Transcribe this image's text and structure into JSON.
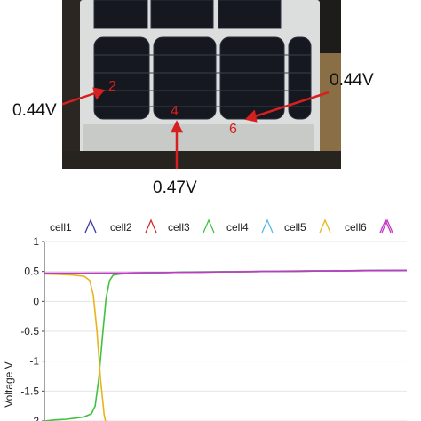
{
  "photo": {
    "callouts": [
      {
        "value": "0.44V",
        "cell": "2"
      },
      {
        "value": "0.47V",
        "cell": "4"
      },
      {
        "value": "0.44V",
        "cell": "6"
      }
    ],
    "arrow_color": "#d62020"
  },
  "chart_data": {
    "type": "line",
    "xlabel": "",
    "ylabel": "Voltage V",
    "ylim": [
      -2,
      1
    ],
    "yticks": [
      1,
      0.5,
      0,
      -0.5,
      -1,
      -1.5,
      -2
    ],
    "ytick_labels": [
      "1",
      "0.5",
      "0",
      "-0.5",
      "-1",
      "-1.5",
      "-2"
    ],
    "legend_position": "top",
    "legend": [
      "cell1",
      "cell2",
      "cell3",
      "cell4",
      "cell5",
      "cell6"
    ],
    "series": [
      {
        "name": "cell1",
        "color": "#3a3aa0",
        "values": [
          [
            0,
            0.47
          ],
          [
            10,
            0.47
          ],
          [
            30,
            0.48
          ],
          [
            60,
            0.5
          ],
          [
            100,
            0.52
          ]
        ]
      },
      {
        "name": "cell2",
        "color": "#d42a2a",
        "values": [
          [
            0,
            0.47
          ],
          [
            10,
            0.47
          ],
          [
            30,
            0.48
          ],
          [
            60,
            0.5
          ],
          [
            100,
            0.52
          ]
        ]
      },
      {
        "name": "cell3",
        "color": "#3fc23f",
        "values": [
          [
            0,
            -2.0
          ],
          [
            3,
            -1.98
          ],
          [
            6,
            -1.97
          ],
          [
            9,
            -1.95
          ],
          [
            11,
            -1.93
          ],
          [
            13,
            -1.88
          ],
          [
            14,
            -1.75
          ],
          [
            15,
            -1.3
          ],
          [
            16,
            -0.6
          ],
          [
            17,
            0.05
          ],
          [
            18,
            0.35
          ],
          [
            19,
            0.44
          ],
          [
            21,
            0.46
          ],
          [
            25,
            0.47
          ],
          [
            40,
            0.49
          ],
          [
            70,
            0.51
          ],
          [
            100,
            0.52
          ]
        ]
      },
      {
        "name": "cell4",
        "color": "#5ab6e8",
        "values": [
          [
            0,
            0.47
          ],
          [
            10,
            0.47
          ],
          [
            30,
            0.48
          ],
          [
            60,
            0.5
          ],
          [
            100,
            0.52
          ]
        ]
      },
      {
        "name": "cell5",
        "color": "#e8b41a",
        "values": [
          [
            0,
            0.46
          ],
          [
            4,
            0.45
          ],
          [
            8,
            0.44
          ],
          [
            11,
            0.42
          ],
          [
            12.5,
            0.35
          ],
          [
            13.5,
            0.1
          ],
          [
            14.5,
            -0.5
          ],
          [
            15.5,
            -1.3
          ],
          [
            16.5,
            -1.9
          ],
          [
            17.2,
            -2.1
          ]
        ]
      },
      {
        "name": "cell6",
        "color": "#c23ac2",
        "values": [
          [
            0,
            0.47
          ],
          [
            10,
            0.47
          ],
          [
            30,
            0.48
          ],
          [
            60,
            0.5
          ],
          [
            100,
            0.52
          ]
        ]
      }
    ]
  }
}
